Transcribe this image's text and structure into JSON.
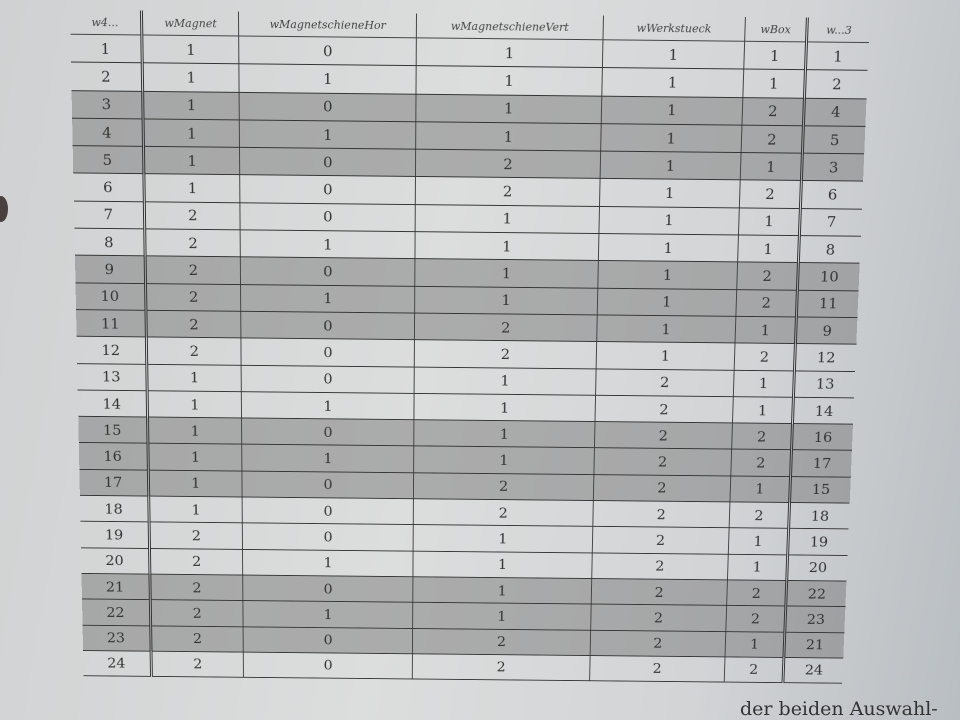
{
  "table": {
    "headers": [
      "w4...",
      "wMagnet",
      "wMagnetschieneHor",
      "wMagnetschieneVert",
      "wWerkstueck",
      "wBox",
      "w...3"
    ],
    "rows": [
      {
        "cells": [
          "1",
          "1",
          "0",
          "1",
          "1",
          "1",
          "1"
        ],
        "shaded": false
      },
      {
        "cells": [
          "2",
          "1",
          "1",
          "1",
          "1",
          "1",
          "2"
        ],
        "shaded": false
      },
      {
        "cells": [
          "3",
          "1",
          "0",
          "1",
          "1",
          "2",
          "4"
        ],
        "shaded": true
      },
      {
        "cells": [
          "4",
          "1",
          "1",
          "1",
          "1",
          "2",
          "5"
        ],
        "shaded": true
      },
      {
        "cells": [
          "5",
          "1",
          "0",
          "2",
          "1",
          "1",
          "3"
        ],
        "shaded": true
      },
      {
        "cells": [
          "6",
          "1",
          "0",
          "2",
          "1",
          "2",
          "6"
        ],
        "shaded": false
      },
      {
        "cells": [
          "7",
          "2",
          "0",
          "1",
          "1",
          "1",
          "7"
        ],
        "shaded": false
      },
      {
        "cells": [
          "8",
          "2",
          "1",
          "1",
          "1",
          "1",
          "8"
        ],
        "shaded": false
      },
      {
        "cells": [
          "9",
          "2",
          "0",
          "1",
          "1",
          "2",
          "10"
        ],
        "shaded": true
      },
      {
        "cells": [
          "10",
          "2",
          "1",
          "1",
          "1",
          "2",
          "11"
        ],
        "shaded": true
      },
      {
        "cells": [
          "11",
          "2",
          "0",
          "2",
          "1",
          "1",
          "9"
        ],
        "shaded": true
      },
      {
        "cells": [
          "12",
          "2",
          "0",
          "2",
          "1",
          "2",
          "12"
        ],
        "shaded": false
      },
      {
        "cells": [
          "13",
          "1",
          "0",
          "1",
          "2",
          "1",
          "13"
        ],
        "shaded": false
      },
      {
        "cells": [
          "14",
          "1",
          "1",
          "1",
          "2",
          "1",
          "14"
        ],
        "shaded": false
      },
      {
        "cells": [
          "15",
          "1",
          "0",
          "1",
          "2",
          "2",
          "16"
        ],
        "shaded": true
      },
      {
        "cells": [
          "16",
          "1",
          "1",
          "1",
          "2",
          "2",
          "17"
        ],
        "shaded": true
      },
      {
        "cells": [
          "17",
          "1",
          "0",
          "2",
          "2",
          "1",
          "15"
        ],
        "shaded": true
      },
      {
        "cells": [
          "18",
          "1",
          "0",
          "2",
          "2",
          "2",
          "18"
        ],
        "shaded": false
      },
      {
        "cells": [
          "19",
          "2",
          "0",
          "1",
          "2",
          "1",
          "19"
        ],
        "shaded": false
      },
      {
        "cells": [
          "20",
          "2",
          "1",
          "1",
          "2",
          "1",
          "20"
        ],
        "shaded": false
      },
      {
        "cells": [
          "21",
          "2",
          "0",
          "1",
          "2",
          "2",
          "22"
        ],
        "shaded": true
      },
      {
        "cells": [
          "22",
          "2",
          "1",
          "1",
          "2",
          "2",
          "23"
        ],
        "shaded": true
      },
      {
        "cells": [
          "23",
          "2",
          "0",
          "2",
          "2",
          "1",
          "21"
        ],
        "shaded": true
      },
      {
        "cells": [
          "24",
          "2",
          "0",
          "2",
          "2",
          "2",
          "24"
        ],
        "shaded": false
      }
    ]
  },
  "footer_text": "der beiden Auswahl-"
}
